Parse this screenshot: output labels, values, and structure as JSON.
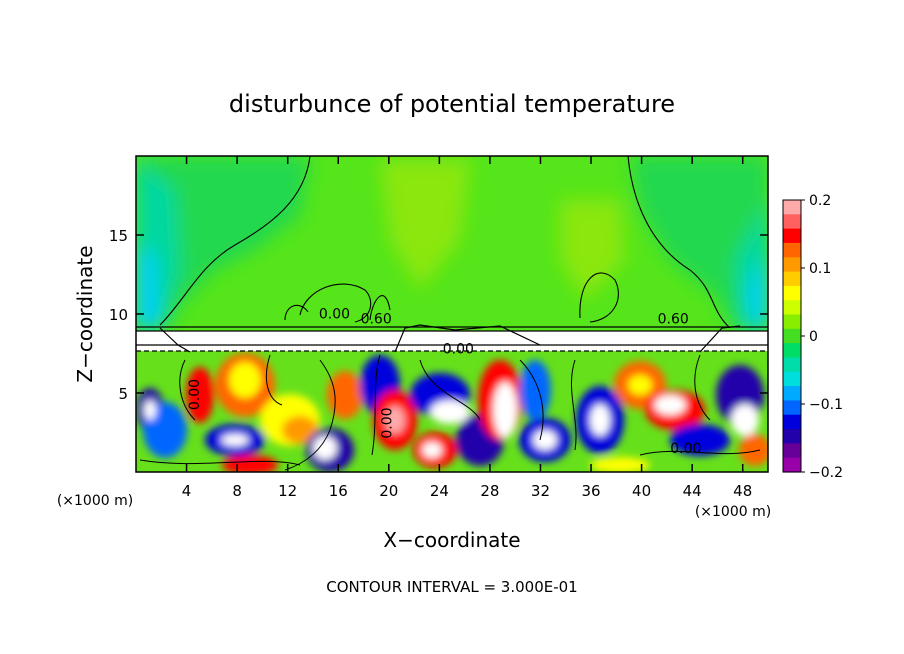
{
  "figure": {
    "title": "disturbunce of potential temperature",
    "contour_interval": "CONTOUR INTERVAL = 3.000E-01"
  },
  "chart_data": {
    "type": "heatmap",
    "title": "disturbunce of potential temperature",
    "xlabel": "X−coordinate",
    "ylabel": "Z−coordinate",
    "x_unit_left": "(×1000 m)",
    "x_unit_right": "(×1000 m)",
    "xlim": [
      0,
      50
    ],
    "ylim": [
      0,
      20
    ],
    "x_ticks": [
      4,
      8,
      12,
      16,
      20,
      24,
      28,
      32,
      36,
      40,
      44,
      48
    ],
    "y_ticks": [
      5,
      10,
      15
    ],
    "colorbar": {
      "range": [
        -0.2,
        0.2
      ],
      "ticks": [
        0.2,
        0.1,
        0,
        -0.1,
        -0.2
      ],
      "tick_labels": [
        "0.2",
        "0.1",
        "0",
        "−0.1",
        "−0.2"
      ],
      "colors": [
        "#ffaaaa",
        "#ff6060",
        "#ff0000",
        "#ff6600",
        "#ff9900",
        "#ffcc00",
        "#ffff00",
        "#ccff00",
        "#88ee00",
        "#44dd22",
        "#00dd66",
        "#00ddaa",
        "#00dddd",
        "#00aaff",
        "#0066ff",
        "#0000dd",
        "#2200aa",
        "#660099",
        "#9900aa"
      ]
    },
    "band": {
      "z_top": 9.2,
      "z_bottom": 8.0
    },
    "contour_labels": [
      {
        "text": "0.00",
        "x": 15.7,
        "z": 9.7
      },
      {
        "text": "0.60",
        "x": 19.0,
        "z": 9.4
      },
      {
        "text": "0.60",
        "x": 42.5,
        "z": 9.4
      },
      {
        "text": "0.00",
        "x": 25.5,
        "z": 7.5
      },
      {
        "text": "0.00",
        "x": 5.0,
        "z": 4.9
      },
      {
        "text": "0.00",
        "x": 20.2,
        "z": 3.1
      },
      {
        "text": "0.00",
        "x": 43.5,
        "z": 1.2
      }
    ],
    "grid": false
  }
}
